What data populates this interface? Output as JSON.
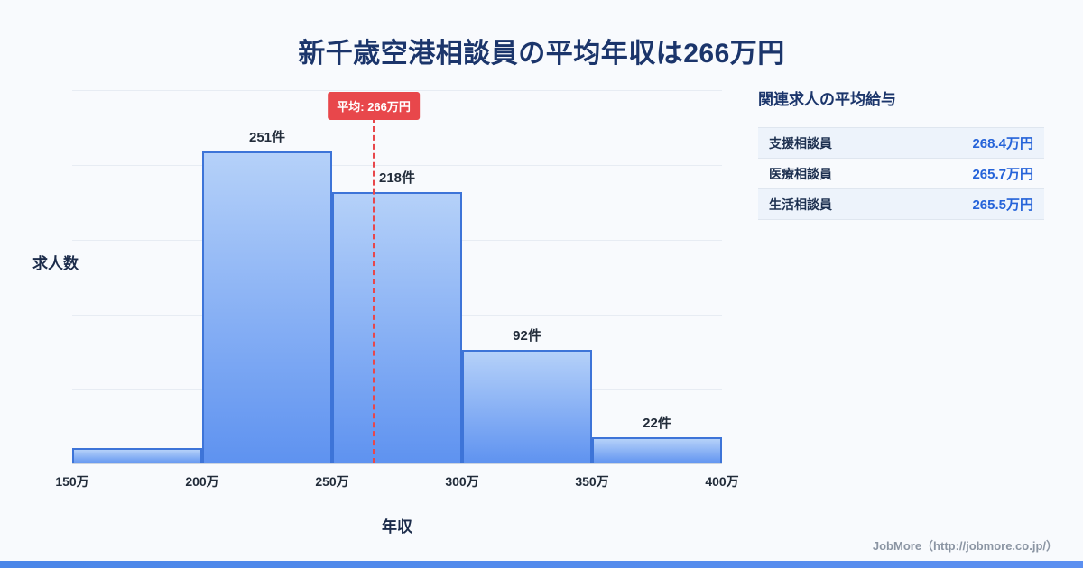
{
  "page": {
    "title": "新千歳空港相談員の平均年収は266万円",
    "footer": "JobMore（http://jobmore.co.jp/）"
  },
  "chart_data": {
    "type": "bar",
    "title": "新千歳空港相談員の平均年収は266万円",
    "xlabel": "年収",
    "ylabel": "求人数",
    "x_ticks": [
      "150万",
      "200万",
      "250万",
      "300万",
      "350万",
      "400万"
    ],
    "x_range": [
      150,
      400
    ],
    "bins": [
      {
        "range": "150万-200万",
        "value": 13,
        "label": ""
      },
      {
        "range": "200万-250万",
        "value": 251,
        "label": "251件"
      },
      {
        "range": "250万-300万",
        "value": 218,
        "label": "218件"
      },
      {
        "range": "300万-350万",
        "value": 92,
        "label": "92件"
      },
      {
        "range": "350万-400万",
        "value": 22,
        "label": "22件"
      }
    ],
    "ylim": [
      0,
      300
    ],
    "grid": true,
    "legend": "none",
    "average": {
      "value": 266,
      "label": "平均: 266万円"
    },
    "colors": {
      "bar_top": "#b5d1f9",
      "bar_bottom": "#5e92f0",
      "bar_border": "#3d74d8",
      "average_line": "#e8474b",
      "title_text": "#1b356b",
      "accent_value": "#2563d9",
      "bottom_strip": "#4a86e8"
    }
  },
  "side_panel": {
    "heading": "関連求人の平均給与",
    "rows": [
      {
        "name": "支援相談員",
        "salary": "268.4万円"
      },
      {
        "name": "医療相談員",
        "salary": "265.7万円"
      },
      {
        "name": "生活相談員",
        "salary": "265.5万円"
      }
    ]
  }
}
